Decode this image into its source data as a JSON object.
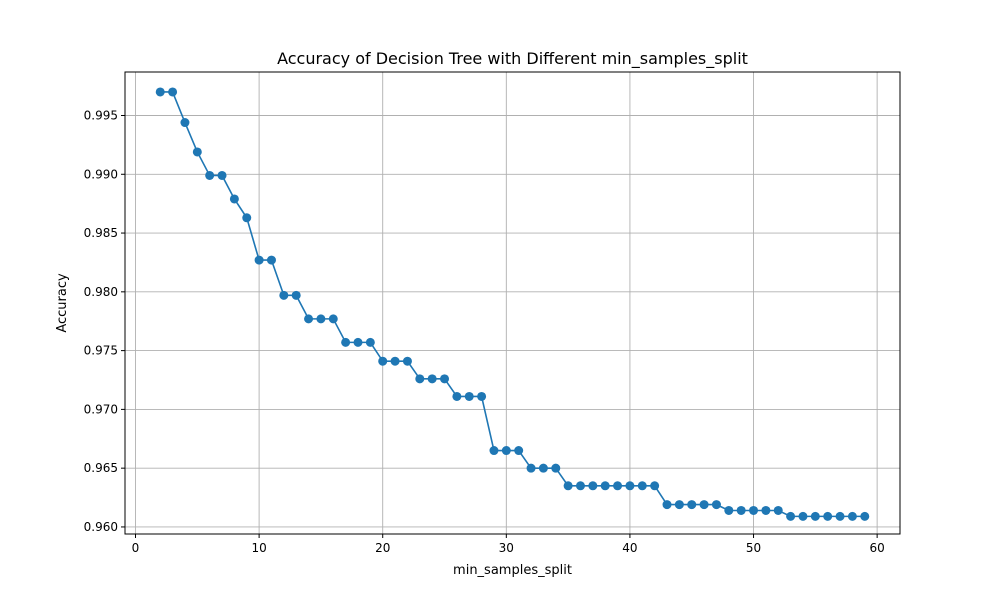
{
  "chart_data": {
    "type": "line",
    "title": "Accuracy of Decision Tree with Different min_samples_split",
    "xlabel": "min_samples_split",
    "ylabel": "Accuracy",
    "xlim": [
      -0.85,
      61.85
    ],
    "ylim": [
      0.9594,
      0.9987
    ],
    "xticks": [
      0,
      10,
      20,
      30,
      40,
      50,
      60
    ],
    "xtick_labels": [
      "0",
      "10",
      "20",
      "30",
      "40",
      "50",
      "60"
    ],
    "yticks": [
      0.96,
      0.965,
      0.97,
      0.975,
      0.98,
      0.985,
      0.99,
      0.995
    ],
    "ytick_labels": [
      "0.960",
      "0.965",
      "0.970",
      "0.975",
      "0.980",
      "0.985",
      "0.990",
      "0.995"
    ],
    "grid": true,
    "marker": "circle",
    "color": "#1f77b4",
    "x": [
      2,
      3,
      4,
      5,
      6,
      7,
      8,
      9,
      10,
      11,
      12,
      13,
      14,
      15,
      16,
      17,
      18,
      19,
      20,
      21,
      22,
      23,
      24,
      25,
      26,
      27,
      28,
      29,
      30,
      31,
      32,
      33,
      34,
      35,
      36,
      37,
      38,
      39,
      40,
      41,
      42,
      43,
      44,
      45,
      46,
      47,
      48,
      49,
      50,
      51,
      52,
      53,
      54,
      55,
      56,
      57,
      58,
      59
    ],
    "y": [
      0.997,
      0.997,
      0.9944,
      0.9919,
      0.9899,
      0.9899,
      0.9879,
      0.9863,
      0.9827,
      0.9827,
      0.9797,
      0.9797,
      0.9777,
      0.9777,
      0.9777,
      0.9757,
      0.9757,
      0.9757,
      0.9741,
      0.9741,
      0.9741,
      0.9726,
      0.9726,
      0.9726,
      0.9711,
      0.9711,
      0.9711,
      0.9665,
      0.9665,
      0.9665,
      0.965,
      0.965,
      0.965,
      0.9635,
      0.9635,
      0.9635,
      0.9635,
      0.9635,
      0.9635,
      0.9635,
      0.9635,
      0.9619,
      0.9619,
      0.9619,
      0.9619,
      0.9619,
      0.9614,
      0.9614,
      0.9614,
      0.9614,
      0.9614,
      0.9609,
      0.9609,
      0.9609,
      0.9609,
      0.9609,
      0.9609,
      0.9609
    ]
  }
}
